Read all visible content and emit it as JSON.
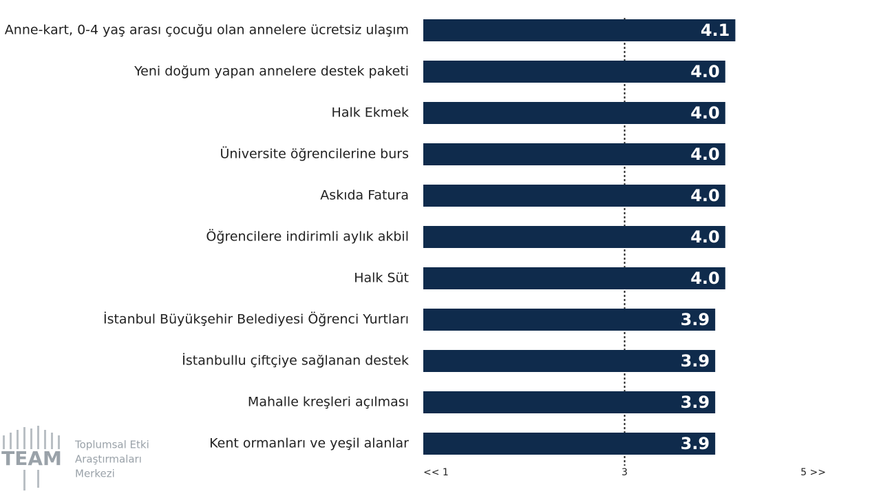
{
  "chart_data": {
    "type": "barh",
    "categories": [
      "Anne-kart, 0-4 yaş arası çocuğu olan annelere ücretsiz ulaşım",
      "Yeni doğum yapan annelere destek paketi",
      "Halk Ekmek",
      "Üniversite öğrencilerine burs",
      "Askıda Fatura",
      "Öğrencilere indirimli aylık akbil",
      "Halk Süt",
      "İstanbul Büyükşehir Belediyesi Öğrenci Yurtları",
      "İstanbullu çiftçiye sağlanan destek",
      "Mahalle kreşleri açılması",
      "Kent ormanları ve yeşil alanlar"
    ],
    "values": [
      4.1,
      4.0,
      4.0,
      4.0,
      4.0,
      4.0,
      4.0,
      3.9,
      3.9,
      3.9,
      3.9
    ],
    "value_labels": [
      "4.1",
      "4.0",
      "4.0",
      "4.0",
      "4.0",
      "4.0",
      "4.0",
      "3.9",
      "3.9",
      "3.9",
      "3.9"
    ],
    "color": "#0f2b4c",
    "xlim": [
      1,
      5
    ],
    "xticks": [
      {
        "value": 1,
        "label": "<< 1"
      },
      3,
      {
        "value": 5,
        "label": "5 >>"
      }
    ],
    "reference_line": 3
  },
  "logo": {
    "abbr": "TEAM",
    "lines": [
      "Toplumsal Etki",
      "Araştırmaları",
      "Merkezi"
    ]
  }
}
